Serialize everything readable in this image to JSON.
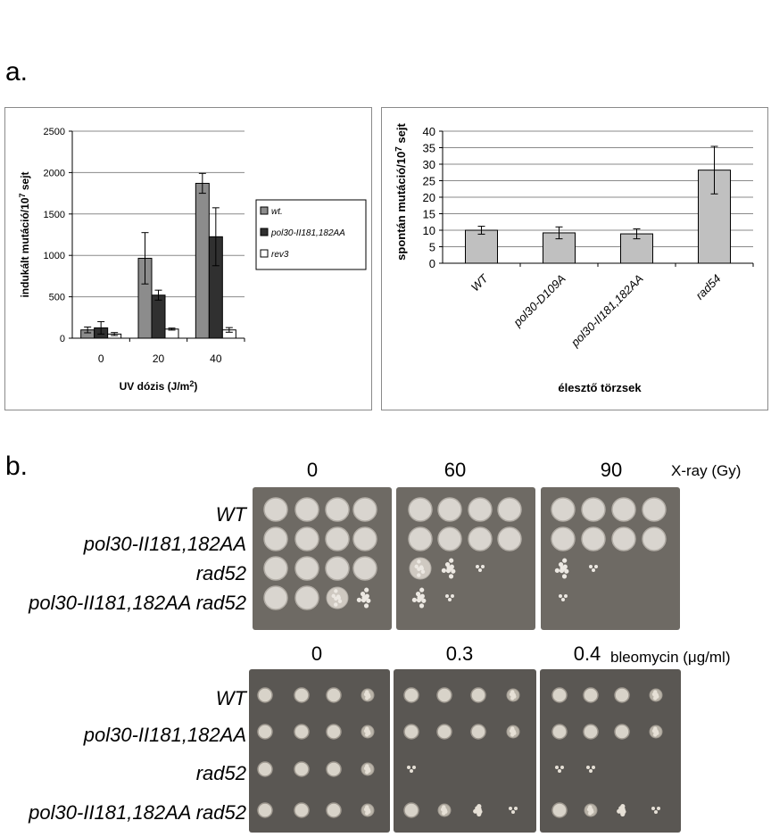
{
  "panel_a_label": "a.",
  "panel_b_label": "b.",
  "chart_data": [
    {
      "type": "bar",
      "ylabel": "indukált mutáció/10 7 sejt",
      "ylabel_parts": [
        "indukált mutáció/10",
        "7",
        " sejt"
      ],
      "xlabel": "UV dózis (J/m 2 )",
      "xlabel_parts": [
        "UV dózis (J/m",
        "2",
        ")"
      ],
      "categories": [
        "0",
        "20",
        "40"
      ],
      "ylim": [
        0,
        2500
      ],
      "yticks": [
        "0",
        "500",
        "1000",
        "1500",
        "2000",
        "2500"
      ],
      "grid": true,
      "legend_position": "right",
      "series": [
        {
          "name": "wt.",
          "color": "#8c8c8c",
          "values": [
            100,
            965,
            1870
          ],
          "errors": [
            35,
            310,
            120
          ]
        },
        {
          "name": "pol30-II181,182AA",
          "color": "#303030",
          "values": [
            125,
            520,
            1225
          ],
          "errors": [
            75,
            60,
            350
          ]
        },
        {
          "name": "rev3",
          "color": "#ffffff",
          "values": [
            50,
            110,
            100
          ],
          "errors": [
            18,
            12,
            28
          ]
        }
      ]
    },
    {
      "type": "bar",
      "ylabel": "spontán mutáció/10 7 sejt",
      "ylabel_parts": [
        "spontán mutáció/10",
        "7",
        " sejt"
      ],
      "xlabel": "élesztő törzsek",
      "categories": [
        "WT",
        "pol30-D109A",
        "pol30-II181,182AA",
        "rad54"
      ],
      "ylim": [
        0,
        40
      ],
      "yticks": [
        "0",
        "5",
        "10",
        "15",
        "20",
        "25",
        "30",
        "35",
        "40"
      ],
      "grid": true,
      "series": [
        {
          "name": "spontán",
          "color": "#c0c0c0",
          "values": [
            10,
            9.2,
            8.9,
            28.2
          ],
          "errors": [
            1.2,
            1.8,
            1.5,
            7.2
          ]
        }
      ]
    }
  ],
  "xray": {
    "doses": [
      "0",
      "60",
      "90"
    ],
    "unit": "X-ray (Gy)",
    "strains": [
      "WT",
      "pol30-II181,182AA",
      "rad52",
      "pol30-II181,182AA rad52"
    ],
    "growth": [
      [
        [
          4,
          4,
          4,
          4
        ],
        [
          4,
          4,
          4,
          4
        ],
        [
          4,
          4,
          4,
          4
        ]
      ],
      [
        [
          4,
          4,
          4,
          4
        ],
        [
          4,
          4,
          4,
          4
        ],
        [
          4,
          4,
          4,
          4
        ]
      ],
      [
        [
          4,
          4,
          4,
          4
        ],
        [
          3,
          2,
          1,
          0
        ],
        [
          2,
          1,
          0,
          0
        ]
      ],
      [
        [
          4,
          4,
          3,
          2
        ],
        [
          2,
          1,
          0,
          0
        ],
        [
          1,
          0,
          0,
          0
        ]
      ]
    ]
  },
  "bleomycin": {
    "doses": [
      "0",
      "0.3",
      "0.4"
    ],
    "unit": "bleomycin (μg/ml)",
    "strains": [
      "WT",
      "pol30-II181,182AA",
      "rad52",
      "pol30-II181,182AA rad52"
    ],
    "growth": [
      [
        [
          4,
          4,
          4,
          3
        ],
        [
          4,
          4,
          4,
          3
        ],
        [
          4,
          4,
          4,
          3
        ]
      ],
      [
        [
          4,
          4,
          4,
          3
        ],
        [
          4,
          4,
          4,
          3
        ],
        [
          4,
          4,
          4,
          3
        ]
      ],
      [
        [
          4,
          4,
          4,
          3
        ],
        [
          1,
          0,
          0,
          0
        ],
        [
          1,
          1,
          0,
          0
        ]
      ],
      [
        [
          4,
          4,
          4,
          3
        ],
        [
          4,
          3,
          2,
          1
        ],
        [
          4,
          3,
          2,
          1
        ]
      ]
    ]
  }
}
